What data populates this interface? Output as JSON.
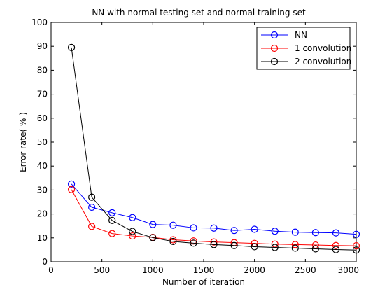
{
  "chart_data": {
    "type": "line",
    "title": "NN with normal testing set and normal training set",
    "xlabel": "Number of iteration",
    "ylabel": "Error rate( % )",
    "xlim": [
      0,
      3000
    ],
    "ylim": [
      0,
      100
    ],
    "xticks": [
      0,
      500,
      1000,
      1500,
      2000,
      2500,
      3000
    ],
    "xtick_labels": [
      "0",
      "500",
      "1000",
      "1500",
      "2000",
      "2500",
      "3000"
    ],
    "yticks": [
      0,
      10,
      20,
      30,
      40,
      50,
      60,
      70,
      80,
      90,
      100
    ],
    "ytick_labels": [
      "0",
      "10",
      "20",
      "30",
      "40",
      "50",
      "60",
      "70",
      "80",
      "90",
      "100"
    ],
    "grid": false,
    "legend_position": "top-right",
    "x": [
      200,
      400,
      600,
      800,
      1000,
      1200,
      1400,
      1600,
      1800,
      2000,
      2200,
      2400,
      2600,
      2800,
      3000
    ],
    "series": [
      {
        "name": "NN",
        "color": "#0000ff",
        "marker": "circle",
        "values": [
          32.5,
          22.8,
          20.5,
          18.5,
          15.6,
          15.3,
          14.2,
          14.1,
          13.1,
          13.6,
          12.8,
          12.4,
          12.2,
          12.1,
          11.5
        ]
      },
      {
        "name": "1 convolution",
        "color": "#ff0000",
        "marker": "circle",
        "values": [
          30.2,
          14.8,
          11.8,
          10.8,
          10.2,
          9.2,
          8.7,
          8.3,
          8.0,
          7.7,
          7.4,
          7.2,
          7.0,
          6.8,
          6.7
        ]
      },
      {
        "name": "2 convolution",
        "color": "#000000",
        "marker": "circle",
        "values": [
          89.5,
          27.0,
          17.3,
          12.7,
          10.1,
          8.5,
          7.8,
          7.2,
          6.8,
          6.3,
          6.0,
          5.7,
          5.4,
          5.1,
          4.9
        ]
      }
    ]
  }
}
